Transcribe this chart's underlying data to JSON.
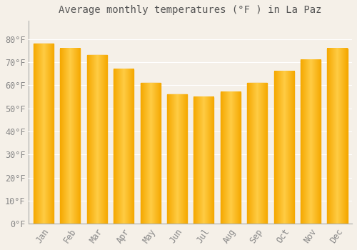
{
  "title": "Average monthly temperatures (°F ) in La Paz",
  "months": [
    "Jan",
    "Feb",
    "Mar",
    "Apr",
    "May",
    "Jun",
    "Jul",
    "Aug",
    "Sep",
    "Oct",
    "Nov",
    "Dec"
  ],
  "values": [
    78,
    76,
    73,
    67,
    61,
    56,
    55,
    57,
    61,
    66,
    71,
    76
  ],
  "bar_color_center": "#FFCC44",
  "bar_color_edge": "#F5A800",
  "background_color": "#F5F0E8",
  "plot_bg_color": "#F5F0E8",
  "grid_color": "#FFFFFF",
  "tick_label_color": "#888888",
  "title_color": "#555555",
  "ylim": [
    0,
    88
  ],
  "yticks": [
    0,
    10,
    20,
    30,
    40,
    50,
    60,
    70,
    80
  ],
  "title_fontsize": 10,
  "tick_fontsize": 8.5,
  "bar_width": 0.75
}
